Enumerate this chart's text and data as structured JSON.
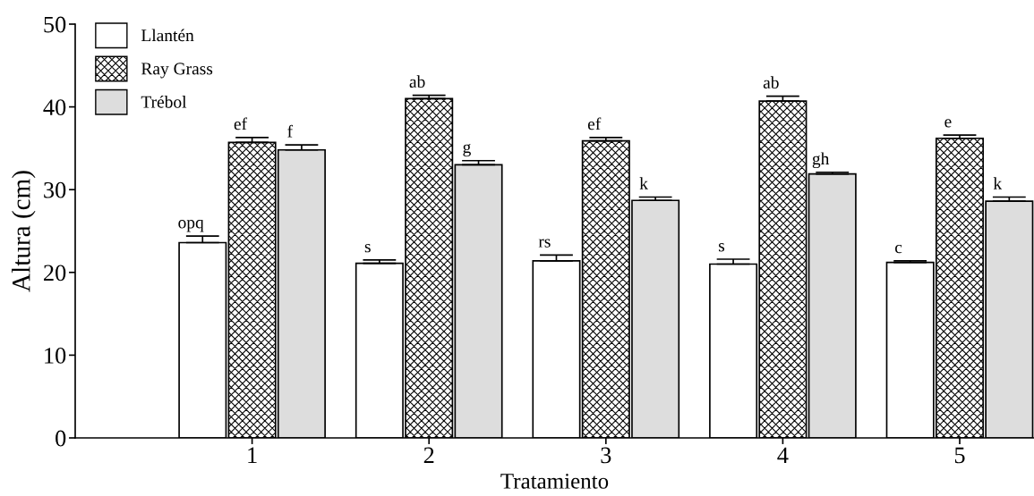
{
  "chart_data": {
    "type": "bar",
    "xlabel": "Tratamiento",
    "ylabel": "Altura (cm)",
    "categories": [
      "1",
      "2",
      "3",
      "4",
      "5"
    ],
    "series": [
      {
        "name": "Llantén",
        "color": "#ffffff",
        "values": [
          23.6,
          21.1,
          21.4,
          21.0,
          21.2
        ],
        "errors": [
          0.8,
          0.4,
          0.7,
          0.6,
          0.2
        ]
      },
      {
        "name": "Ray Grass",
        "color": "#000000",
        "values": [
          35.7,
          41.0,
          35.9,
          40.7,
          36.2
        ],
        "errors": [
          0.6,
          0.4,
          0.4,
          0.6,
          0.4
        ]
      },
      {
        "name": "Trébol",
        "color": "#dddddd",
        "values": [
          34.8,
          33.0,
          28.7,
          31.9,
          28.6
        ],
        "errors": [
          0.6,
          0.5,
          0.4,
          0.2,
          0.5
        ]
      }
    ],
    "ylim": [
      0,
      50
    ],
    "yticks": [
      0,
      10,
      20,
      30,
      40,
      50
    ],
    "grid": false,
    "legend": "top left",
    "annotations": [
      "opq",
      "ef",
      "f",
      "s",
      "ab",
      "g",
      "rs",
      "ef",
      "k",
      "s",
      "ab",
      "gh",
      "c",
      "e",
      "k"
    ]
  }
}
